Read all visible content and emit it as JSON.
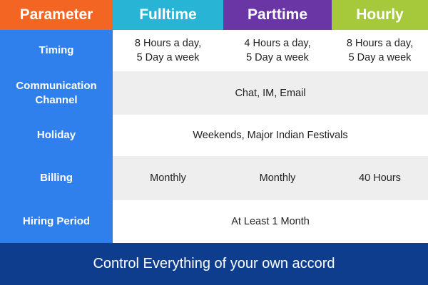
{
  "header": {
    "parameter": "Parameter",
    "fulltime": "Fulltime",
    "parttime": "Parttime",
    "hourly": "Hourly"
  },
  "rows": [
    {
      "label": "Timing",
      "fulltime": "8 Hours a day,\n5 Day a week",
      "parttime": "4 Hours a day,\n5 Day a week",
      "hourly": "8 Hours a day,\n5 Day a week"
    },
    {
      "label": "Communication\nChannel",
      "all": "Chat, IM, Email"
    },
    {
      "label": "Holiday",
      "all": "Weekends, Major Indian Festivals"
    },
    {
      "label": "Billing",
      "fulltime": "Monthly",
      "parttime": "Monthly",
      "hourly": "40 Hours"
    },
    {
      "label": "Hiring Period",
      "all": "At Least 1 Month"
    }
  ],
  "footer": {
    "text": "Control Everything of your own accord"
  },
  "colors": {
    "parameter_header": "#f26522",
    "fulltime_header": "#28b4d4",
    "parttime_header": "#6a35a5",
    "hourly_header": "#a5c93a",
    "parameter_column": "#2f80ed",
    "footer_background": "#0d3d8c",
    "alt_row": "#eeeeee"
  }
}
